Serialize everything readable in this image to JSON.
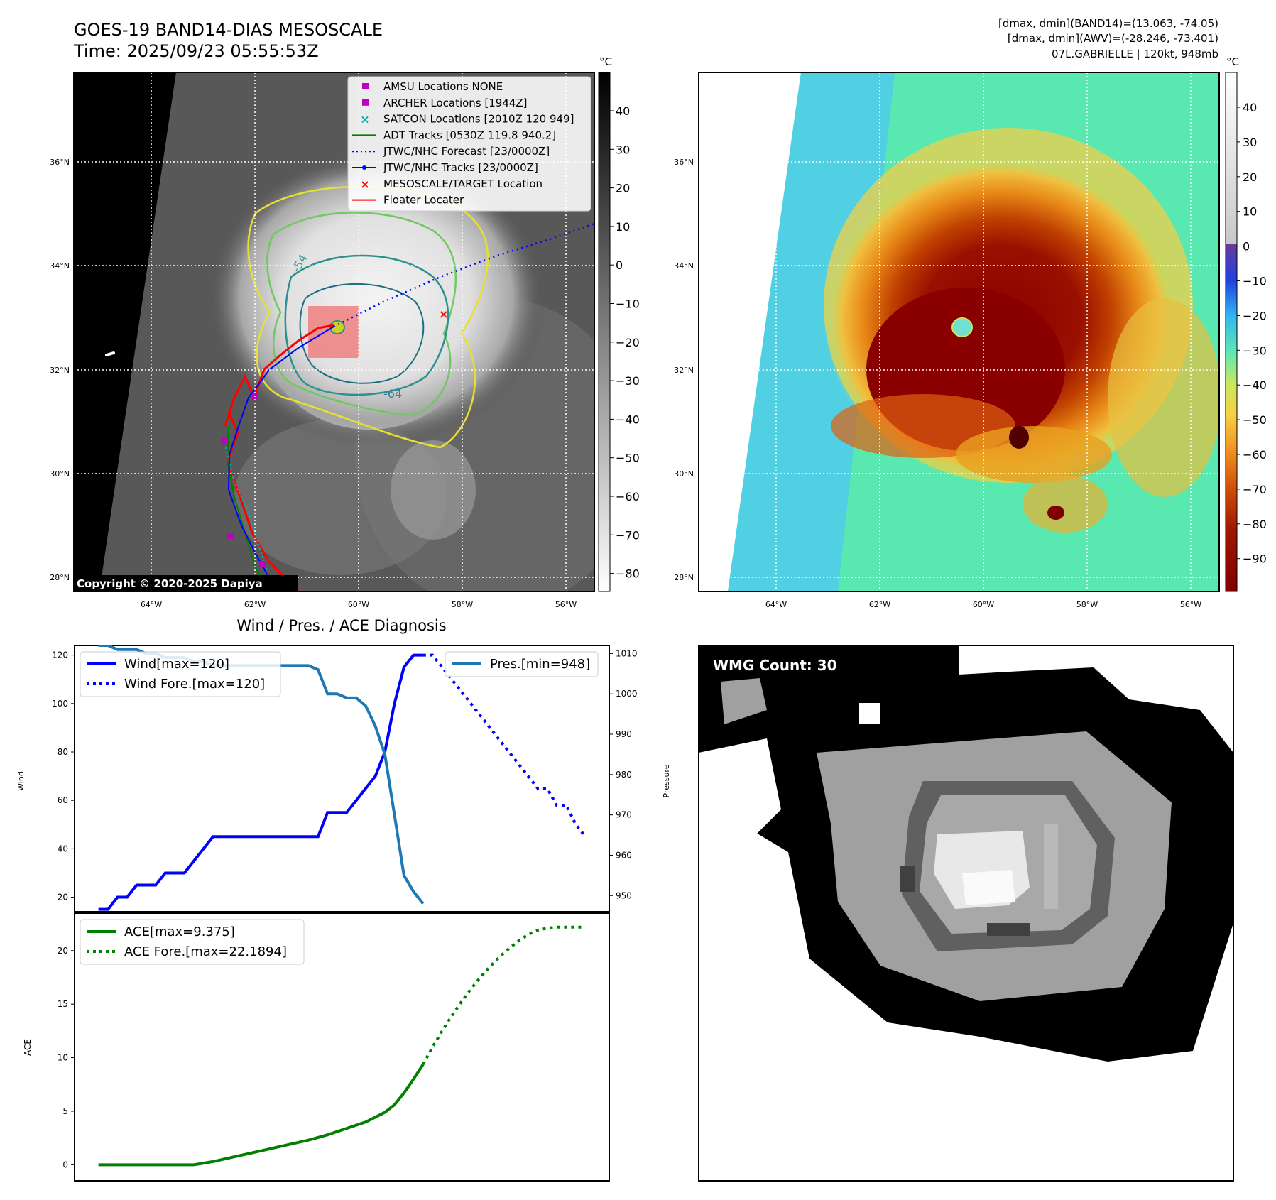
{
  "header": {
    "title": "GOES-19 BAND14-DIAS MESOSCALE",
    "time": "Time: 2025/09/23 05:55:53Z",
    "stats_band14": "[dmax, dmin](BAND14)=(13.063, -74.05)",
    "stats_awv": "[dmax, dmin](AWV)=(-28.246, -73.401)",
    "storm": "07L.GABRIELLE | 120kt, 948mb"
  },
  "map": {
    "lat_labels": [
      "36°N",
      "34°N",
      "32°N",
      "30°N",
      "28°N"
    ],
    "lon_labels": [
      "64°W",
      "62°W",
      "60°W",
      "58°W",
      "56°W"
    ],
    "copyright": "Copyright © 2020-2025 Dapiya",
    "contour_labels": [
      "-54",
      "-64"
    ],
    "legend": [
      {
        "label": "AMSU Locations NONE",
        "color": "#c000c0",
        "marker": "square"
      },
      {
        "label": "ARCHER Locations [1944Z]",
        "color": "#c000c0",
        "marker": "square"
      },
      {
        "label": "SATCON Locations [2010Z 120 949]",
        "color": "#00b0b0",
        "marker": "x"
      },
      {
        "label": "ADT Tracks [0530Z 119.8 940.2]",
        "color": "#008000",
        "marker": "line"
      },
      {
        "label": "JTWC/NHC Forecast [23/0000Z]",
        "color": "#0000ff",
        "marker": "dotted"
      },
      {
        "label": "JTWC/NHC Tracks [23/0000Z]",
        "color": "#0000ff",
        "marker": "line-dot"
      },
      {
        "label": "MESOSCALE/TARGET Location",
        "color": "#ff0000",
        "marker": "x"
      },
      {
        "label": "Floater Locater",
        "color": "#ff0000",
        "marker": "line"
      }
    ],
    "colorbar_gray": {
      "unit": "°C",
      "ticks": [
        "40",
        "30",
        "20",
        "10",
        "0",
        "−10",
        "−20",
        "−30",
        "−40",
        "−50",
        "−60",
        "−70",
        "−80"
      ]
    },
    "colorbar_color": {
      "unit": "°C",
      "ticks": [
        "40",
        "30",
        "20",
        "10",
        "0",
        "−10",
        "−20",
        "−30",
        "−40",
        "−50",
        "−60",
        "−70",
        "−80",
        "−90"
      ]
    }
  },
  "diagnosis": {
    "title": "Wind / Pres. / ACE Diagnosis",
    "wind_ylabel": "Wind",
    "pres_ylabel": "Pressure",
    "ace_ylabel": "ACE",
    "legend_wind": "Wind[max=120]",
    "legend_wind_fore": "Wind Fore.[max=120]",
    "legend_pres": "Pres.[min=948]",
    "legend_ace": "ACE[max=9.375]",
    "legend_ace_fore": "ACE Fore.[max=22.1894]",
    "wind_ticks": [
      "20",
      "40",
      "60",
      "80",
      "100",
      "120"
    ],
    "pres_ticks": [
      "950",
      "960",
      "970",
      "980",
      "990",
      "1000",
      "1010"
    ],
    "ace_ticks": [
      "0",
      "5",
      "10",
      "15",
      "20"
    ]
  },
  "wmg": {
    "label": "WMG Count: 30"
  },
  "chart_data": [
    {
      "type": "line",
      "title": "Wind / Pres. / ACE Diagnosis",
      "ylabel": "Wind",
      "ylim": [
        14,
        124
      ],
      "series": [
        {
          "name": "Wind[max=120]",
          "color": "#0000ff",
          "style": "solid",
          "x": [
            0,
            1,
            2,
            3,
            4,
            5,
            6,
            7,
            8,
            9,
            10,
            11,
            12,
            13,
            14,
            15,
            16,
            17,
            18,
            19,
            20,
            21,
            22,
            23,
            24,
            25,
            26,
            27,
            28,
            29,
            30,
            31,
            32,
            33,
            34
          ],
          "values": [
            15,
            15,
            20,
            20,
            25,
            25,
            25,
            30,
            30,
            30,
            35,
            40,
            45,
            45,
            45,
            45,
            45,
            45,
            45,
            45,
            45,
            45,
            45,
            45,
            55,
            55,
            55,
            60,
            65,
            70,
            80,
            100,
            115,
            120,
            120
          ]
        },
        {
          "name": "Wind Fore.[max=120]",
          "color": "#0000ff",
          "style": "dotted",
          "x": [
            34,
            35,
            36,
            38,
            40,
            42,
            44,
            46,
            47,
            48,
            49,
            50,
            51
          ],
          "values": [
            120,
            120,
            115,
            105,
            95,
            85,
            75,
            65,
            65,
            58,
            58,
            50,
            45
          ]
        }
      ]
    },
    {
      "type": "line",
      "ylabel": "Pressure",
      "ylim": [
        946,
        1012
      ],
      "series": [
        {
          "name": "Pres.[min=948]",
          "color": "#1f77b4",
          "style": "solid",
          "x": [
            0,
            1,
            2,
            3,
            4,
            5,
            6,
            7,
            8,
            9,
            10,
            11,
            12,
            13,
            14,
            15,
            16,
            17,
            18,
            19,
            20,
            21,
            22,
            23,
            24,
            25,
            26,
            27,
            28,
            29,
            30,
            31,
            32,
            33,
            34
          ],
          "values": [
            1012,
            1012,
            1011,
            1011,
            1011,
            1010,
            1010,
            1009,
            1009,
            1009,
            1008,
            1008,
            1007,
            1007,
            1007,
            1007,
            1007,
            1007,
            1007,
            1007,
            1007,
            1007,
            1007,
            1006,
            1000,
            1000,
            999,
            999,
            997,
            992,
            985,
            970,
            955,
            951,
            948
          ]
        }
      ]
    },
    {
      "type": "line",
      "ylabel": "ACE",
      "ylim": [
        -1.5,
        23.5
      ],
      "series": [
        {
          "name": "ACE[max=9.375]",
          "color": "#008000",
          "style": "solid",
          "x": [
            0,
            2,
            4,
            6,
            8,
            10,
            12,
            14,
            16,
            18,
            20,
            22,
            24,
            26,
            28,
            30,
            31,
            32,
            33,
            34
          ],
          "values": [
            0,
            0,
            0,
            0,
            0,
            0,
            0.3,
            0.7,
            1.1,
            1.5,
            1.9,
            2.3,
            2.8,
            3.4,
            4.0,
            4.9,
            5.6,
            6.7,
            8.0,
            9.375
          ]
        },
        {
          "name": "ACE Fore.[max=22.1894]",
          "color": "#008000",
          "style": "dotted",
          "x": [
            34,
            35,
            36,
            37,
            38,
            39,
            40,
            41,
            42,
            43,
            44,
            45,
            46,
            47,
            48,
            49,
            50,
            51
          ],
          "values": [
            9.375,
            11.0,
            12.5,
            13.9,
            15.2,
            16.4,
            17.5,
            18.5,
            19.4,
            20.2,
            20.9,
            21.5,
            21.9,
            22.1,
            22.1894,
            22.1894,
            22.1894,
            22.1894
          ]
        }
      ]
    }
  ]
}
